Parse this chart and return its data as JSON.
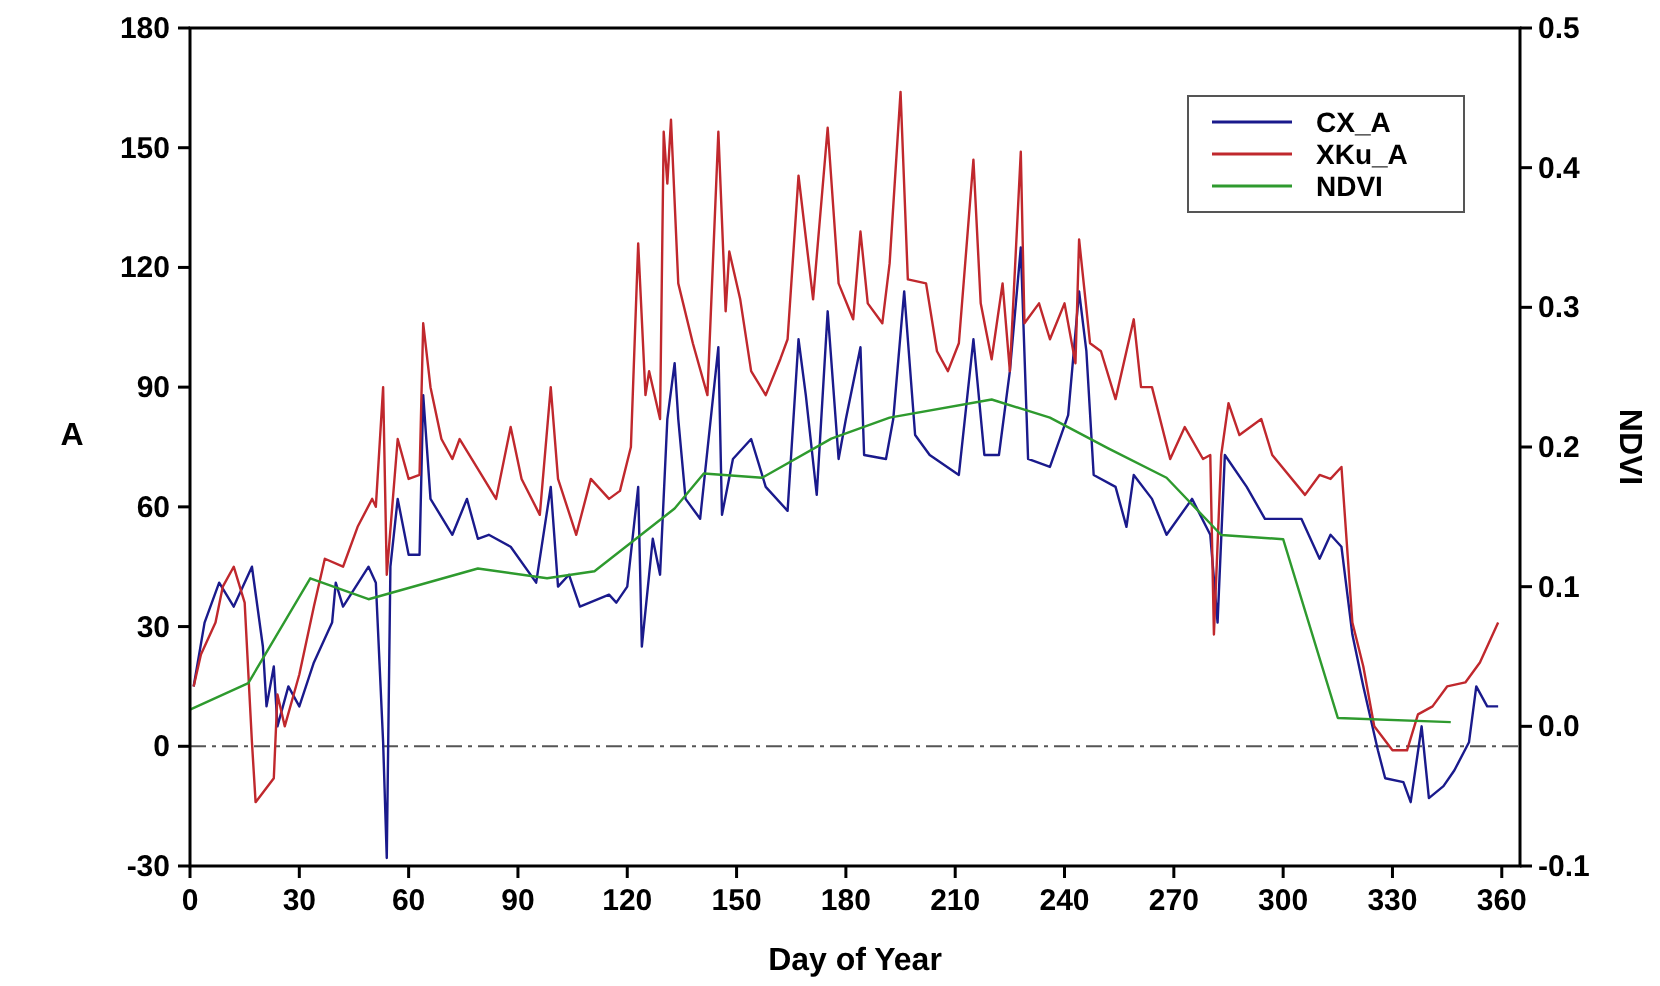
{
  "chart_data": {
    "type": "line",
    "xlabel": "Day of Year",
    "ylabel": "A",
    "y2label": "NDVI",
    "xlim": [
      0,
      365
    ],
    "xticks": [
      0,
      30,
      60,
      90,
      120,
      150,
      180,
      210,
      240,
      270,
      300,
      330,
      360
    ],
    "ylim": [
      -30,
      180
    ],
    "yticks": [
      -30,
      0,
      30,
      60,
      90,
      120,
      150,
      180
    ],
    "y2lim": [
      -0.1,
      0.5
    ],
    "y2ticks": [
      -0.1,
      {
        "value": 0,
        "label": "0.0"
      },
      0.1,
      0.2,
      0.3,
      0.4,
      0.5
    ],
    "legend": "top right",
    "grid": false,
    "line_style": "solid",
    "marker": "none",
    "ref_lines": [
      {
        "axis": "y",
        "value": 0,
        "color": "#555555",
        "line_style": "dashdot"
      }
    ],
    "series": [
      {
        "name": "CX_A",
        "color": "#1a1a8c",
        "x": [
          1,
          4,
          8,
          12,
          17,
          20,
          21,
          23,
          24,
          27,
          30,
          34,
          39,
          40,
          42,
          49,
          51,
          53,
          54,
          55,
          57,
          60,
          63,
          64,
          66,
          72,
          76,
          79,
          82,
          88,
          95,
          99,
          101,
          104,
          107,
          115,
          117,
          120,
          123,
          124,
          127,
          129,
          131,
          133,
          134,
          136,
          140,
          145,
          146,
          149,
          154,
          158,
          164,
          167,
          169,
          172,
          175,
          178,
          180,
          184,
          185,
          191,
          193,
          196,
          199,
          203,
          211,
          215,
          218,
          222,
          225,
          228,
          230,
          236,
          241,
          244,
          246,
          248,
          254,
          257,
          259,
          264,
          268,
          275,
          280,
          282,
          284,
          290,
          295,
          305,
          310,
          313,
          316,
          319,
          322,
          326,
          328,
          333,
          335,
          338,
          340,
          344,
          347,
          351,
          353,
          356,
          359
        ],
        "values": [
          15,
          31,
          41,
          35,
          45,
          25,
          10,
          20,
          5,
          15,
          10,
          21,
          31,
          41,
          35,
          45,
          41,
          1,
          -28,
          45,
          62,
          48,
          48,
          88,
          62,
          53,
          62,
          52,
          53,
          50,
          41,
          65,
          40,
          43,
          35,
          38,
          36,
          40,
          65,
          25,
          52,
          43,
          82,
          96,
          82,
          62,
          57,
          100,
          58,
          72,
          77,
          65,
          59,
          102,
          88,
          63,
          109,
          72,
          82,
          100,
          73,
          72,
          82,
          114,
          78,
          73,
          68,
          102,
          73,
          73,
          94,
          125,
          72,
          70,
          83,
          114,
          99,
          68,
          65,
          55,
          68,
          62,
          53,
          62,
          53,
          31,
          73,
          65,
          57,
          57,
          47,
          53,
          50,
          28,
          15,
          -1,
          -8,
          -9,
          -14,
          5,
          -13,
          -10,
          -6,
          1,
          15,
          10,
          10
        ]
      },
      {
        "name": "XKu_A",
        "color": "#c0282d",
        "x": [
          1,
          3,
          7,
          9,
          12,
          15,
          17,
          18,
          23,
          24,
          26,
          30,
          34,
          37,
          42,
          46,
          50,
          51,
          53,
          54,
          57,
          60,
          63,
          64,
          66,
          69,
          72,
          74,
          80,
          84,
          88,
          91,
          96,
          99,
          101,
          106,
          110,
          115,
          118,
          121,
          123,
          125,
          126,
          129,
          130,
          131,
          132,
          134,
          138,
          142,
          145,
          147,
          148,
          151,
          154,
          158,
          162,
          164,
          167,
          171,
          175,
          178,
          182,
          184,
          186,
          190,
          192,
          195,
          197,
          202,
          205,
          208,
          211,
          215,
          217,
          220,
          223,
          225,
          228,
          229,
          233,
          236,
          240,
          243,
          244,
          247,
          250,
          254,
          259,
          261,
          264,
          269,
          273,
          278,
          280,
          281,
          283,
          285,
          288,
          294,
          297,
          306,
          310,
          313,
          316,
          319,
          322,
          325,
          330,
          334,
          337,
          341,
          345,
          350,
          354,
          359
        ],
        "values": [
          15,
          23,
          31,
          40,
          45,
          36,
          1,
          -14,
          -8,
          13,
          5,
          18,
          35,
          47,
          45,
          55,
          62,
          60,
          90,
          43,
          77,
          67,
          68,
          106,
          90,
          77,
          72,
          77,
          68,
          62,
          80,
          67,
          58,
          90,
          67,
          53,
          67,
          62,
          64,
          75,
          126,
          88,
          94,
          82,
          154,
          141,
          157,
          116,
          101,
          88,
          154,
          109,
          124,
          112,
          94,
          88,
          97,
          102,
          143,
          112,
          155,
          116,
          107,
          129,
          111,
          106,
          121,
          164,
          117,
          116,
          99,
          94,
          101,
          147,
          111,
          97,
          116,
          94,
          149,
          106,
          111,
          102,
          111,
          96,
          127,
          101,
          99,
          87,
          107,
          90,
          90,
          72,
          80,
          72,
          73,
          28,
          73,
          86,
          78,
          82,
          73,
          63,
          68,
          67,
          70,
          31,
          20,
          5,
          -1,
          -1,
          8,
          10,
          15,
          16,
          21,
          31
        ]
      },
      {
        "name": "NDVI",
        "color": "#2e9a2e",
        "axis": "y2",
        "x": [
          0,
          16,
          33,
          49,
          79,
          98,
          111,
          133,
          141,
          157,
          176,
          192,
          220,
          236,
          252,
          268,
          283,
          300,
          315,
          346
        ],
        "values": [
          0.012,
          0.031,
          0.106,
          0.091,
          0.113,
          0.106,
          0.111,
          0.156,
          0.181,
          0.178,
          0.206,
          0.221,
          0.234,
          0.221,
          0.199,
          0.178,
          0.137,
          0.134,
          0.006,
          0.003
        ]
      }
    ]
  }
}
